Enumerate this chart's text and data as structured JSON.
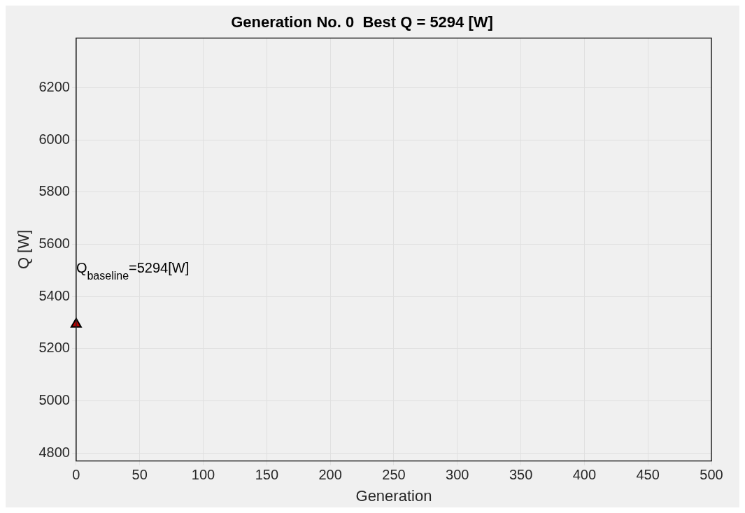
{
  "chart_data": {
    "type": "scatter",
    "title": "Generation No. 0  Best Q = 5294 [W]",
    "xlabel": "Generation",
    "ylabel": "Q [W]",
    "series": [
      {
        "color": "#c00000",
        "x": [
          0
        ],
        "values": [
          5294
        ]
      }
    ],
    "marker": "triangle",
    "xlim": [
      0,
      500
    ],
    "xticks": [
      0,
      50,
      100,
      150,
      200,
      250,
      300,
      350,
      400,
      450,
      500
    ],
    "ylim": [
      4770,
      6390
    ],
    "yticks": [
      4800,
      5000,
      5200,
      5400,
      5600,
      5800,
      6000,
      6200
    ],
    "grid": true,
    "annotations": [
      "Q$_{baseline}$=5294[W]"
    ]
  }
}
